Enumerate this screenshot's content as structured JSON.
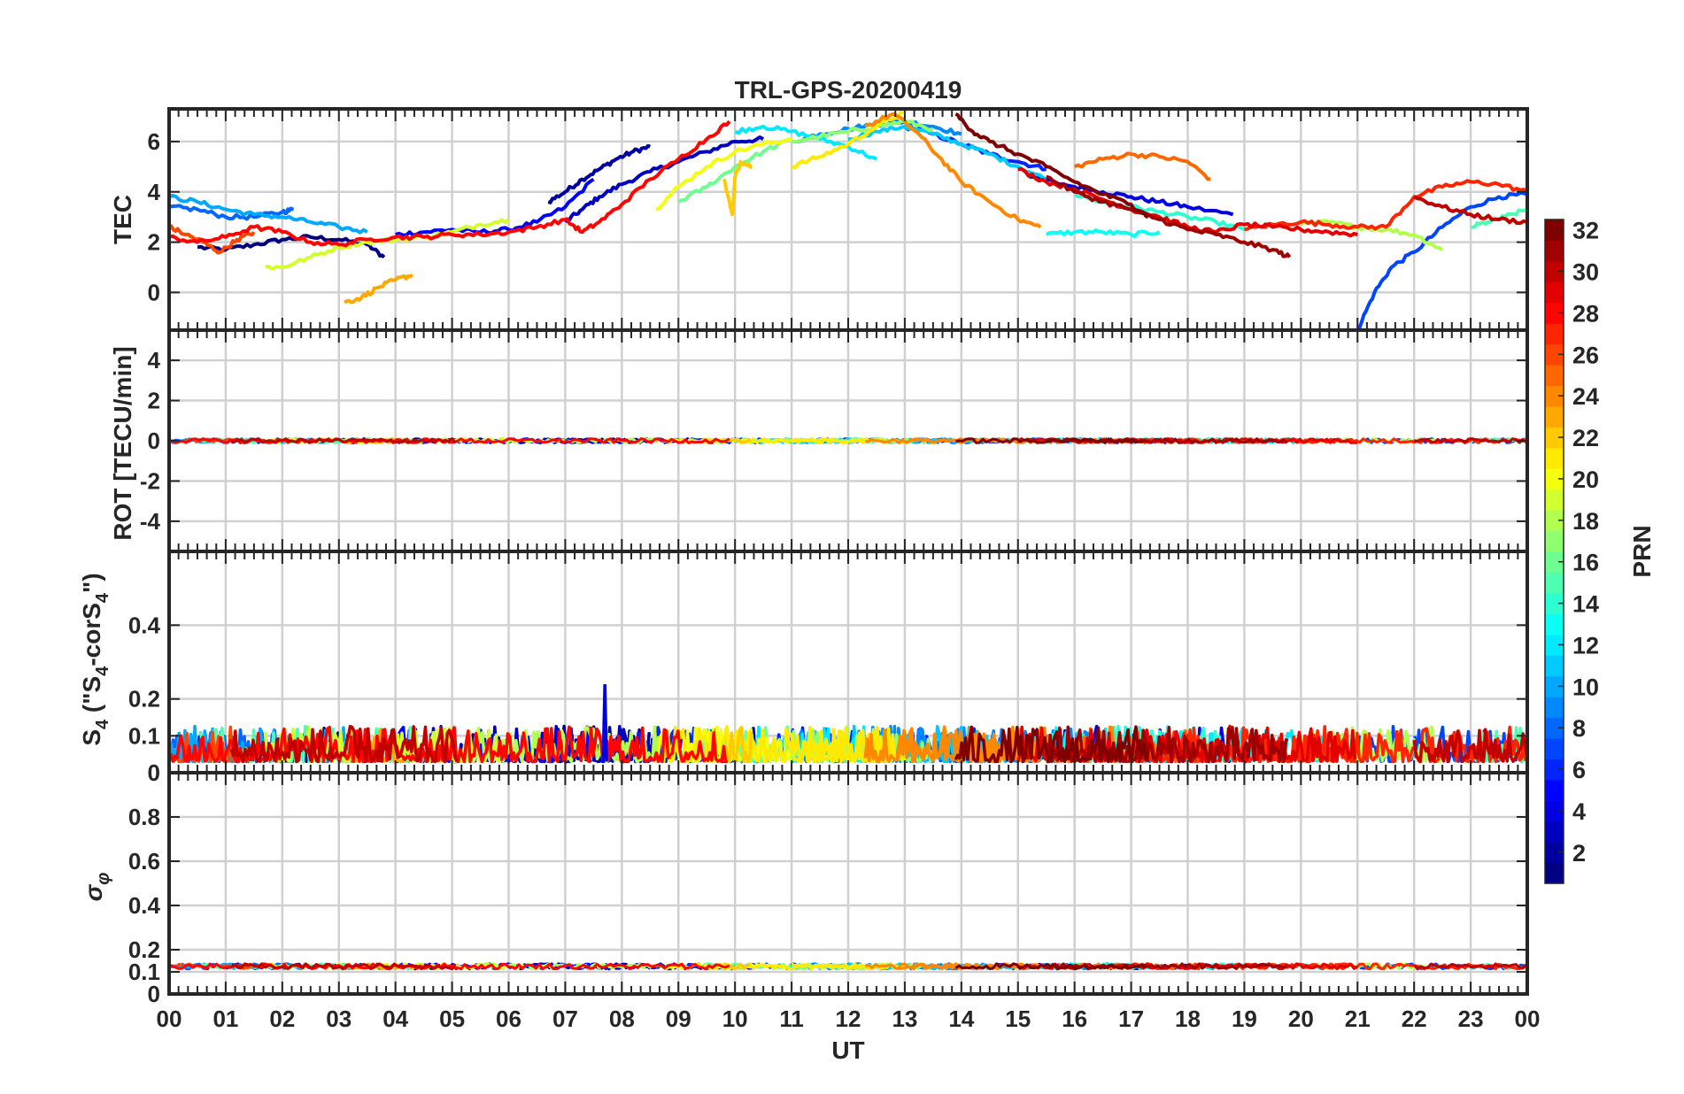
{
  "chart_data": {
    "title": "TRL-GPS-20200419",
    "xlabel": "UT",
    "x_ticks": [
      "00",
      "01",
      "02",
      "03",
      "04",
      "05",
      "06",
      "07",
      "08",
      "09",
      "10",
      "11",
      "12",
      "13",
      "14",
      "15",
      "16",
      "17",
      "18",
      "19",
      "20",
      "21",
      "22",
      "23",
      "00"
    ],
    "xlim_hours": [
      0,
      24
    ],
    "colorbar": {
      "label": "PRN",
      "range": [
        1,
        32
      ],
      "ticks": [
        2,
        4,
        6,
        8,
        10,
        12,
        14,
        16,
        18,
        20,
        22,
        24,
        26,
        28,
        30,
        32
      ],
      "tick_labels": [
        "2",
        "4",
        "6",
        "8",
        "10",
        "12",
        "14",
        "16",
        "18",
        "20",
        "22",
        "24",
        "26",
        "28",
        "30",
        "32"
      ],
      "colormap": "jet"
    },
    "panels": [
      {
        "id": "tec",
        "type": "line",
        "ylabel": "TEC",
        "ylim": [
          -1.5,
          7.3
        ],
        "yticks": [
          0,
          2,
          4,
          6
        ],
        "ytick_labels": [
          "0",
          "2",
          "4",
          "6"
        ],
        "grid": true,
        "series": [
          {
            "prn": 1,
            "x": [
              0.5,
              1.0,
              1.5,
              2.0,
              2.5,
              3.0,
              3.5,
              3.8
            ],
            "y": [
              1.8,
              1.7,
              1.9,
              2.1,
              2.2,
              2.1,
              1.9,
              1.4
            ]
          },
          {
            "prn": 2,
            "x": [
              6.7,
              7.0,
              7.3,
              7.6,
              7.9,
              8.2,
              8.5
            ],
            "y": [
              3.6,
              4.0,
              4.5,
              4.9,
              5.3,
              5.6,
              5.8
            ]
          },
          {
            "prn": 3,
            "x": [
              7.0,
              7.3,
              7.6,
              8.0,
              8.5,
              9.0,
              9.5,
              10.0,
              10.5
            ],
            "y": [
              2.8,
              3.3,
              3.8,
              4.3,
              4.8,
              5.2,
              5.6,
              6.0,
              6.1
            ]
          },
          {
            "prn": 4,
            "x": [
              15.2,
              16.0,
              16.5,
              17.0,
              17.5,
              18.0,
              18.8
            ],
            "y": [
              4.6,
              4.2,
              4.0,
              3.8,
              3.6,
              3.4,
              3.1
            ]
          },
          {
            "prn": 5,
            "x": [
              4.0,
              4.5,
              5.0,
              5.5,
              6.0,
              6.5,
              7.0,
              7.5
            ],
            "y": [
              2.3,
              2.4,
              2.5,
              2.4,
              2.5,
              2.8,
              3.4,
              4.5
            ]
          },
          {
            "prn": 6,
            "x": [
              13.0,
              13.5,
              14.0,
              14.5,
              15.0,
              15.5
            ],
            "y": [
              6.6,
              6.3,
              5.9,
              5.5,
              5.2,
              4.9
            ]
          },
          {
            "prn": 7,
            "x": [
              21.0,
              21.3,
              21.6,
              22.0,
              22.5,
              23.0,
              23.5,
              24.0
            ],
            "y": [
              -1.5,
              0.0,
              1.0,
              1.6,
              2.6,
              3.4,
              3.8,
              3.9
            ]
          },
          {
            "prn": 8,
            "x": [
              0.0,
              0.5,
              1.0,
              1.5,
              2.0,
              2.2
            ],
            "y": [
              3.4,
              3.3,
              3.0,
              3.0,
              3.2,
              3.3
            ]
          },
          {
            "prn": 9,
            "x": [
              11.0,
              11.5,
              12.0,
              12.5,
              13.0,
              13.5,
              14.0
            ],
            "y": [
              6.0,
              6.3,
              6.5,
              6.7,
              6.8,
              6.6,
              6.3
            ]
          },
          {
            "prn": 10,
            "x": [
              0.0,
              0.5,
              1.0,
              1.5,
              2.0,
              2.5,
              3.0,
              3.5
            ],
            "y": [
              3.8,
              3.6,
              3.3,
              3.1,
              3.0,
              2.8,
              2.6,
              2.4
            ]
          },
          {
            "prn": 11,
            "x": [
              12.0,
              12.5,
              13.0,
              13.5,
              14.0,
              14.5,
              15.0,
              15.5
            ],
            "y": [
              6.1,
              6.4,
              6.6,
              6.3,
              5.9,
              5.5,
              5.0,
              4.5
            ]
          },
          {
            "prn": 12,
            "x": [
              10.0,
              10.5,
              11.0,
              11.5,
              12.0,
              12.5
            ],
            "y": [
              6.4,
              6.6,
              6.4,
              6.1,
              5.8,
              5.3
            ]
          },
          {
            "prn": 13,
            "x": [
              15.5,
              16.0,
              16.5,
              17.0,
              17.5
            ],
            "y": [
              2.3,
              2.4,
              2.4,
              2.3,
              2.4
            ]
          },
          {
            "prn": 14,
            "x": [
              16.0,
              16.5,
              17.0,
              17.5,
              18.0,
              18.5,
              19.0
            ],
            "y": [
              3.9,
              3.6,
              3.4,
              3.2,
              3.0,
              2.8,
              2.5
            ]
          },
          {
            "prn": 15,
            "x": [
              23.0,
              23.3,
              23.6,
              24.0
            ],
            "y": [
              2.6,
              2.8,
              3.0,
              3.3
            ]
          },
          {
            "prn": 16,
            "x": [
              9.0,
              9.5,
              10.0,
              10.5,
              11.0
            ],
            "y": [
              3.6,
              4.2,
              5.0,
              5.6,
              6.1
            ]
          },
          {
            "prn": 17,
            "x": [
              11.0,
              11.5,
              12.0,
              12.5,
              13.0,
              13.5
            ],
            "y": [
              6.0,
              6.2,
              6.4,
              6.6,
              6.8,
              6.5
            ]
          },
          {
            "prn": 18,
            "x": [
              20.0,
              20.5,
              21.0,
              21.5,
              22.0,
              22.5
            ],
            "y": [
              2.7,
              2.8,
              2.6,
              2.5,
              2.3,
              1.7
            ]
          },
          {
            "prn": 19,
            "x": [
              1.7,
              2.0,
              2.5,
              3.0,
              3.5,
              4.0,
              4.5,
              5.0,
              5.5,
              6.0
            ],
            "y": [
              1.0,
              1.0,
              1.4,
              1.8,
              2.0,
              2.1,
              2.2,
              2.4,
              2.7,
              2.9
            ]
          },
          {
            "prn": 20,
            "x": [
              8.6,
              9.0,
              9.5,
              10.0,
              10.5,
              11.0
            ],
            "y": [
              3.3,
              4.2,
              5.0,
              5.6,
              5.9,
              6.1
            ]
          },
          {
            "prn": 21,
            "x": [
              11.0,
              11.5,
              12.0,
              12.5,
              13.0
            ],
            "y": [
              5.0,
              5.4,
              5.9,
              6.6,
              7.2
            ]
          },
          {
            "prn": 22,
            "x": [
              9.8,
              9.9,
              9.95,
              10.0,
              10.1,
              10.3
            ],
            "y": [
              4.5,
              3.6,
              3.1,
              4.6,
              5.2,
              5.0
            ]
          },
          {
            "prn": 23,
            "x": [
              3.1,
              3.4,
              3.7,
              4.0,
              4.3
            ],
            "y": [
              -0.4,
              -0.2,
              0.2,
              0.5,
              0.7
            ]
          },
          {
            "prn": 24,
            "x": [
              12.3,
              12.8,
              13.2,
              13.6,
              14.0,
              14.5,
              15.0,
              15.4
            ],
            "y": [
              6.6,
              7.1,
              6.4,
              5.4,
              4.4,
              3.6,
              2.9,
              2.6
            ]
          },
          {
            "prn": 25,
            "x": [
              16.0,
              16.5,
              17.0,
              17.5,
              18.0,
              18.4
            ],
            "y": [
              5.0,
              5.3,
              5.5,
              5.4,
              5.2,
              4.5
            ]
          },
          {
            "prn": 26,
            "x": [
              0.0,
              0.3,
              0.6,
              0.9,
              1.2,
              1.5
            ],
            "y": [
              2.6,
              2.3,
              2.0,
              1.6,
              2.1,
              2.4
            ]
          },
          {
            "prn": 27,
            "x": [
              19.0,
              19.5,
              20.0,
              20.5,
              21.0,
              21.5,
              22.0,
              22.5,
              23.0,
              23.5,
              24.0
            ],
            "y": [
              2.5,
              2.7,
              2.8,
              2.7,
              2.6,
              2.6,
              3.8,
              4.2,
              4.4,
              4.3,
              4.0
            ]
          },
          {
            "prn": 28,
            "x": [
              0.0,
              0.5,
              1.0,
              1.5,
              2.0,
              2.5,
              3.0,
              3.5,
              4.0,
              4.5,
              5.0,
              5.5,
              6.0,
              6.5,
              7.0,
              7.3,
              7.6,
              8.0,
              8.5,
              9.0,
              9.5,
              9.9
            ],
            "y": [
              2.2,
              2.0,
              2.2,
              2.6,
              2.4,
              2.0,
              1.9,
              2.1,
              2.2,
              2.2,
              2.3,
              2.3,
              2.4,
              2.6,
              2.9,
              2.4,
              2.8,
              3.5,
              4.5,
              5.3,
              6.1,
              6.8
            ]
          },
          {
            "prn": 29,
            "x": [
              15.0,
              15.5,
              16.0,
              16.5,
              17.0,
              17.5,
              18.0,
              18.5,
              19.0,
              19.5,
              20.0,
              20.5,
              21.0
            ],
            "y": [
              4.9,
              4.4,
              4.1,
              3.7,
              3.3,
              3.0,
              2.6,
              2.4,
              2.7,
              2.6,
              2.5,
              2.4,
              2.3
            ]
          },
          {
            "prn": 30,
            "x": [
              22.0,
              22.5,
              23.0,
              23.5,
              24.0
            ],
            "y": [
              3.8,
              3.4,
              3.1,
              2.9,
              2.8
            ]
          },
          {
            "prn": 31,
            "x": [
              15.5,
              16.0,
              16.5,
              17.0,
              17.5,
              18.0,
              18.5,
              19.0,
              19.5,
              19.8
            ],
            "y": [
              4.6,
              4.0,
              3.6,
              3.3,
              2.9,
              2.5,
              2.3,
              2.0,
              1.7,
              1.4
            ]
          },
          {
            "prn": 32,
            "x": [
              13.9,
              14.2,
              14.5,
              15.0,
              15.5,
              16.0,
              16.5,
              17.0,
              17.3
            ],
            "y": [
              7.1,
              6.4,
              6.0,
              5.5,
              5.0,
              4.4,
              3.9,
              3.5,
              3.0
            ]
          }
        ]
      },
      {
        "id": "rot",
        "type": "line",
        "ylabel": "ROT [TECU/min]",
        "ylim": [
          -5.5,
          5.5
        ],
        "yticks": [
          -4,
          -2,
          0,
          2,
          4
        ],
        "ytick_labels": [
          "-4",
          "-2",
          "0",
          "2",
          "4"
        ],
        "grid": true,
        "noise_level": 0.12,
        "baseline": 0
      },
      {
        "id": "s4",
        "type": "line",
        "ylabel": "S4 (\"S4-corS4\")",
        "ylim": [
          0,
          0.6
        ],
        "yticks": [
          0,
          0.1,
          0.2,
          0.4
        ],
        "ytick_labels": [
          "0",
          "0.1",
          "0.2",
          "0.4"
        ],
        "grid": true,
        "baseline": 0.03,
        "noise_level": 0.06,
        "peak": {
          "x": 7.7,
          "y": 0.24
        }
      },
      {
        "id": "sigphi",
        "type": "line",
        "ylabel": "σφ",
        "ylim": [
          0,
          1.0
        ],
        "yticks": [
          0,
          0.1,
          0.2,
          0.4,
          0.6,
          0.8
        ],
        "ytick_labels": [
          "0",
          "0.1",
          "0.2",
          "0.4",
          "0.6",
          "0.8"
        ],
        "grid": true,
        "baseline": 0.12,
        "noise_level": 0.03
      }
    ]
  }
}
